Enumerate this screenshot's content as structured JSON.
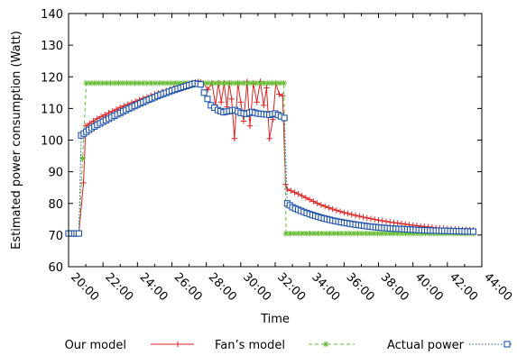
{
  "chart_data": {
    "type": "line",
    "title": "",
    "xlabel": "Time",
    "ylabel": "Estimated power consumption (Watt)",
    "ylim": [
      60,
      140
    ],
    "yticks": [
      60,
      70,
      80,
      90,
      100,
      110,
      120,
      130,
      140
    ],
    "xlim_minutes": [
      1200,
      2640
    ],
    "xtick_labels": [
      "20:00",
      "22:00",
      "24:00",
      "26:00",
      "28:00",
      "30:00",
      "32:00",
      "34:00",
      "36:00",
      "38:00",
      "40:00",
      "42:00",
      "44:00"
    ],
    "grid": false,
    "legend_position": "bottom",
    "series": [
      {
        "name": "Our model",
        "color": "#dd2222",
        "marker": "plus",
        "line_style": "solid",
        "points": [
          [
            1200,
            70.5
          ],
          [
            1220,
            70.5
          ],
          [
            1236,
            70.5
          ],
          [
            1252,
            86.5
          ],
          [
            1260,
            104.5
          ],
          [
            1300,
            106.8
          ],
          [
            1340,
            108.6
          ],
          [
            1380,
            110.3
          ],
          [
            1420,
            111.8
          ],
          [
            1460,
            113.2
          ],
          [
            1500,
            114.5
          ],
          [
            1540,
            115.7
          ],
          [
            1580,
            116.8
          ],
          [
            1620,
            117.9
          ],
          [
            1652,
            118.5
          ],
          [
            1670,
            118.0
          ],
          [
            1685,
            116.0
          ],
          [
            1700,
            118.0
          ],
          [
            1712,
            111.0
          ],
          [
            1722,
            118.0
          ],
          [
            1732,
            112.0
          ],
          [
            1742,
            118.0
          ],
          [
            1752,
            110.5
          ],
          [
            1760,
            118.0
          ],
          [
            1768,
            113.0
          ],
          [
            1778,
            100.5
          ],
          [
            1790,
            118.0
          ],
          [
            1800,
            112.0
          ],
          [
            1810,
            106.0
          ],
          [
            1822,
            118.5
          ],
          [
            1832,
            104.5
          ],
          [
            1844,
            118.0
          ],
          [
            1856,
            112.0
          ],
          [
            1868,
            118.5
          ],
          [
            1880,
            111.0
          ],
          [
            1890,
            116.5
          ],
          [
            1900,
            100.5
          ],
          [
            1912,
            106.5
          ],
          [
            1922,
            118.0
          ],
          [
            1934,
            114.5
          ],
          [
            1946,
            114.0
          ],
          [
            1956,
            86.0
          ],
          [
            1962,
            84.5
          ],
          [
            2000,
            83.0
          ],
          [
            2040,
            81.2
          ],
          [
            2080,
            79.5
          ],
          [
            2120,
            78.2
          ],
          [
            2160,
            77.1
          ],
          [
            2200,
            76.2
          ],
          [
            2240,
            75.4
          ],
          [
            2280,
            74.7
          ],
          [
            2320,
            74.1
          ],
          [
            2360,
            73.6
          ],
          [
            2400,
            73.1
          ],
          [
            2440,
            72.7
          ],
          [
            2480,
            72.3
          ],
          [
            2520,
            72.0
          ],
          [
            2560,
            71.8
          ],
          [
            2610,
            71.6
          ]
        ]
      },
      {
        "name": "Fan’s model",
        "color": "#66bb33",
        "marker": "star",
        "line_style": "dashed",
        "points": [
          [
            1200,
            70.5
          ],
          [
            1236,
            70.5
          ],
          [
            1262,
            118.0
          ],
          [
            1600,
            118.0
          ],
          [
            1950,
            118.0
          ],
          [
            1958,
            70.5
          ],
          [
            2610,
            70.5
          ]
        ]
      },
      {
        "name": "Actual power",
        "color": "#2255aa",
        "marker": "square",
        "line_style": "dotted",
        "points": [
          [
            1200,
            70.5
          ],
          [
            1220,
            70.5
          ],
          [
            1236,
            70.5
          ],
          [
            1244,
            101.5
          ],
          [
            1280,
            103.8
          ],
          [
            1320,
            105.8
          ],
          [
            1360,
            107.7
          ],
          [
            1400,
            109.5
          ],
          [
            1440,
            111.2
          ],
          [
            1480,
            112.8
          ],
          [
            1520,
            114.3
          ],
          [
            1560,
            115.6
          ],
          [
            1600,
            116.8
          ],
          [
            1640,
            117.9
          ],
          [
            1660,
            117.6
          ],
          [
            1672,
            115.0
          ],
          [
            1684,
            113.0
          ],
          [
            1696,
            111.0
          ],
          [
            1720,
            109.5
          ],
          [
            1740,
            108.8
          ],
          [
            1760,
            109.2
          ],
          [
            1780,
            109.5
          ],
          [
            1800,
            108.6
          ],
          [
            1820,
            108.3
          ],
          [
            1840,
            108.9
          ],
          [
            1860,
            108.4
          ],
          [
            1880,
            108.2
          ],
          [
            1900,
            108.0
          ],
          [
            1920,
            108.4
          ],
          [
            1940,
            107.5
          ],
          [
            1952,
            107.0
          ],
          [
            1962,
            80.0
          ],
          [
            1980,
            78.8
          ],
          [
            2000,
            78.0
          ],
          [
            2040,
            76.6
          ],
          [
            2080,
            75.5
          ],
          [
            2120,
            74.6
          ],
          [
            2160,
            73.9
          ],
          [
            2200,
            73.3
          ],
          [
            2240,
            72.8
          ],
          [
            2280,
            72.4
          ],
          [
            2320,
            72.1
          ],
          [
            2360,
            71.9
          ],
          [
            2400,
            71.7
          ],
          [
            2440,
            71.5
          ],
          [
            2480,
            71.4
          ],
          [
            2520,
            71.3
          ],
          [
            2560,
            71.2
          ],
          [
            2610,
            71.1
          ]
        ]
      }
    ]
  }
}
